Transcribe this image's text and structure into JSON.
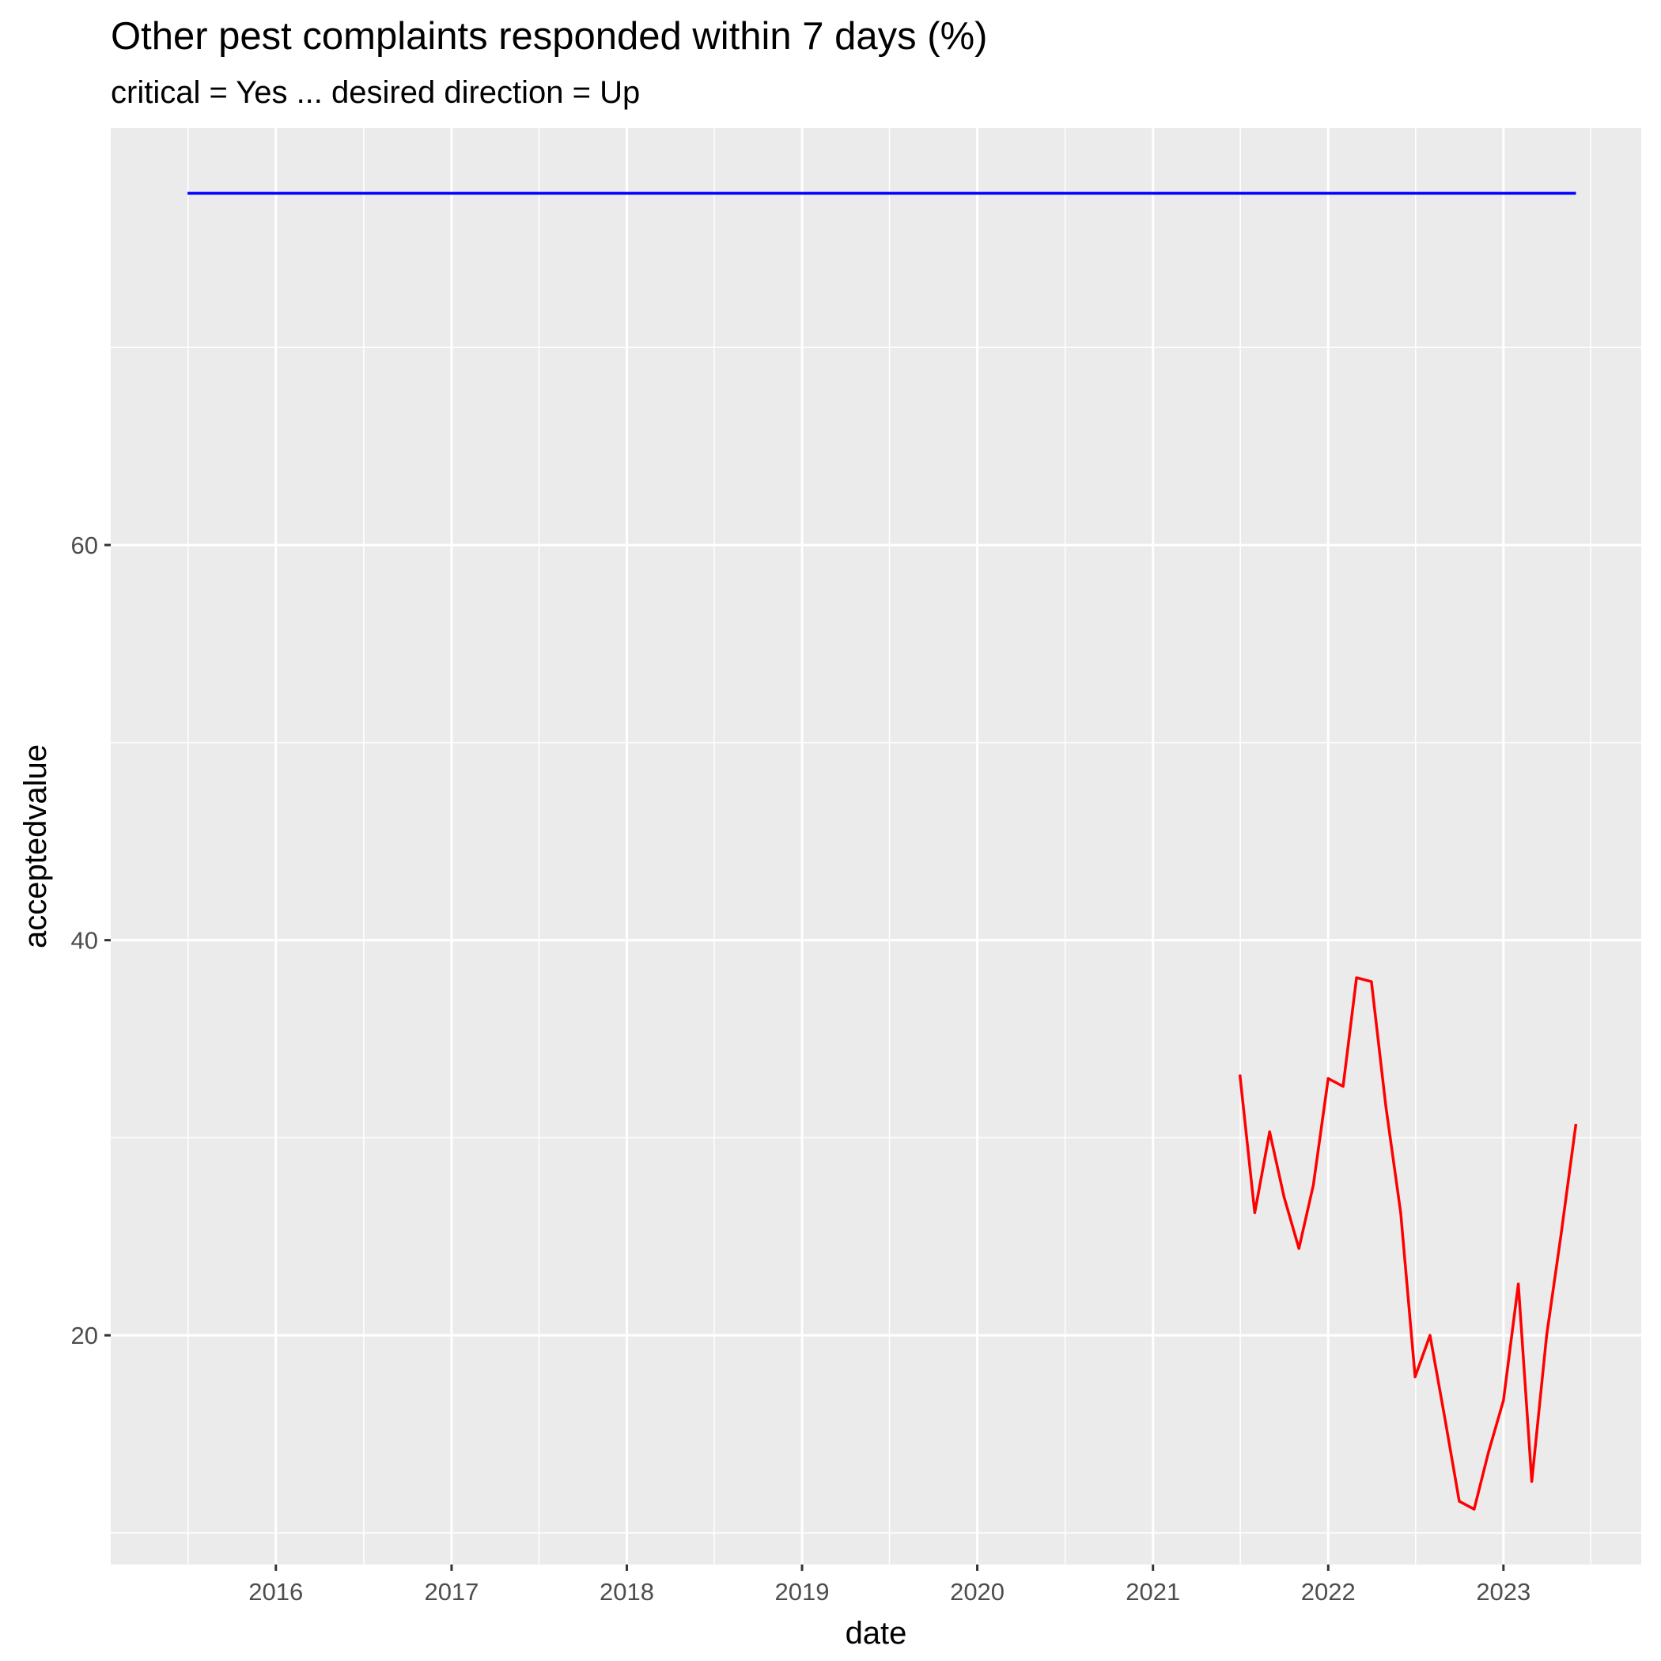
{
  "chart_data": {
    "type": "line",
    "title": "Other pest complaints responded within 7 days (%)",
    "subtitle": "critical = Yes ... desired direction = Up",
    "xlabel": "date",
    "ylabel": "acceptedvalue",
    "x_range": [
      "2015-01-22",
      "2023-10-15"
    ],
    "ylim": [
      8.4,
      81.1
    ],
    "y_ticks": [
      20,
      40,
      60
    ],
    "x_ticks": [
      "2016-01-01",
      "2017-01-01",
      "2018-01-01",
      "2019-01-01",
      "2020-01-01",
      "2021-01-01",
      "2022-01-01",
      "2023-01-01"
    ],
    "x_tick_labels": [
      "2016",
      "2017",
      "2018",
      "2019",
      "2020",
      "2021",
      "2022",
      "2023"
    ],
    "grid": true,
    "series": [
      {
        "color": "#0000ff",
        "x": [
          "2015-07-01",
          "2023-06-01"
        ],
        "y": [
          77.8,
          77.8
        ]
      },
      {
        "color": "#ff0000",
        "x": [
          "2021-07-01",
          "2021-08-01",
          "2021-09-01",
          "2021-10-01",
          "2021-11-01",
          "2021-12-01",
          "2022-01-01",
          "2022-02-01",
          "2022-03-01",
          "2022-04-01",
          "2022-05-01",
          "2022-06-01",
          "2022-07-01",
          "2022-08-01",
          "2022-09-01",
          "2022-10-01",
          "2022-11-01",
          "2022-12-01",
          "2023-01-01",
          "2023-02-01",
          "2023-03-01",
          "2023-04-01",
          "2023-05-01",
          "2023-06-01"
        ],
        "y": [
          33.2,
          26.2,
          30.3,
          27.0,
          24.4,
          27.6,
          33.0,
          32.6,
          38.1,
          37.9,
          31.6,
          26.2,
          17.9,
          20.0,
          15.8,
          11.6,
          11.2,
          14.1,
          16.7,
          22.6,
          12.6,
          20.0,
          25.1,
          30.7
        ]
      }
    ]
  }
}
